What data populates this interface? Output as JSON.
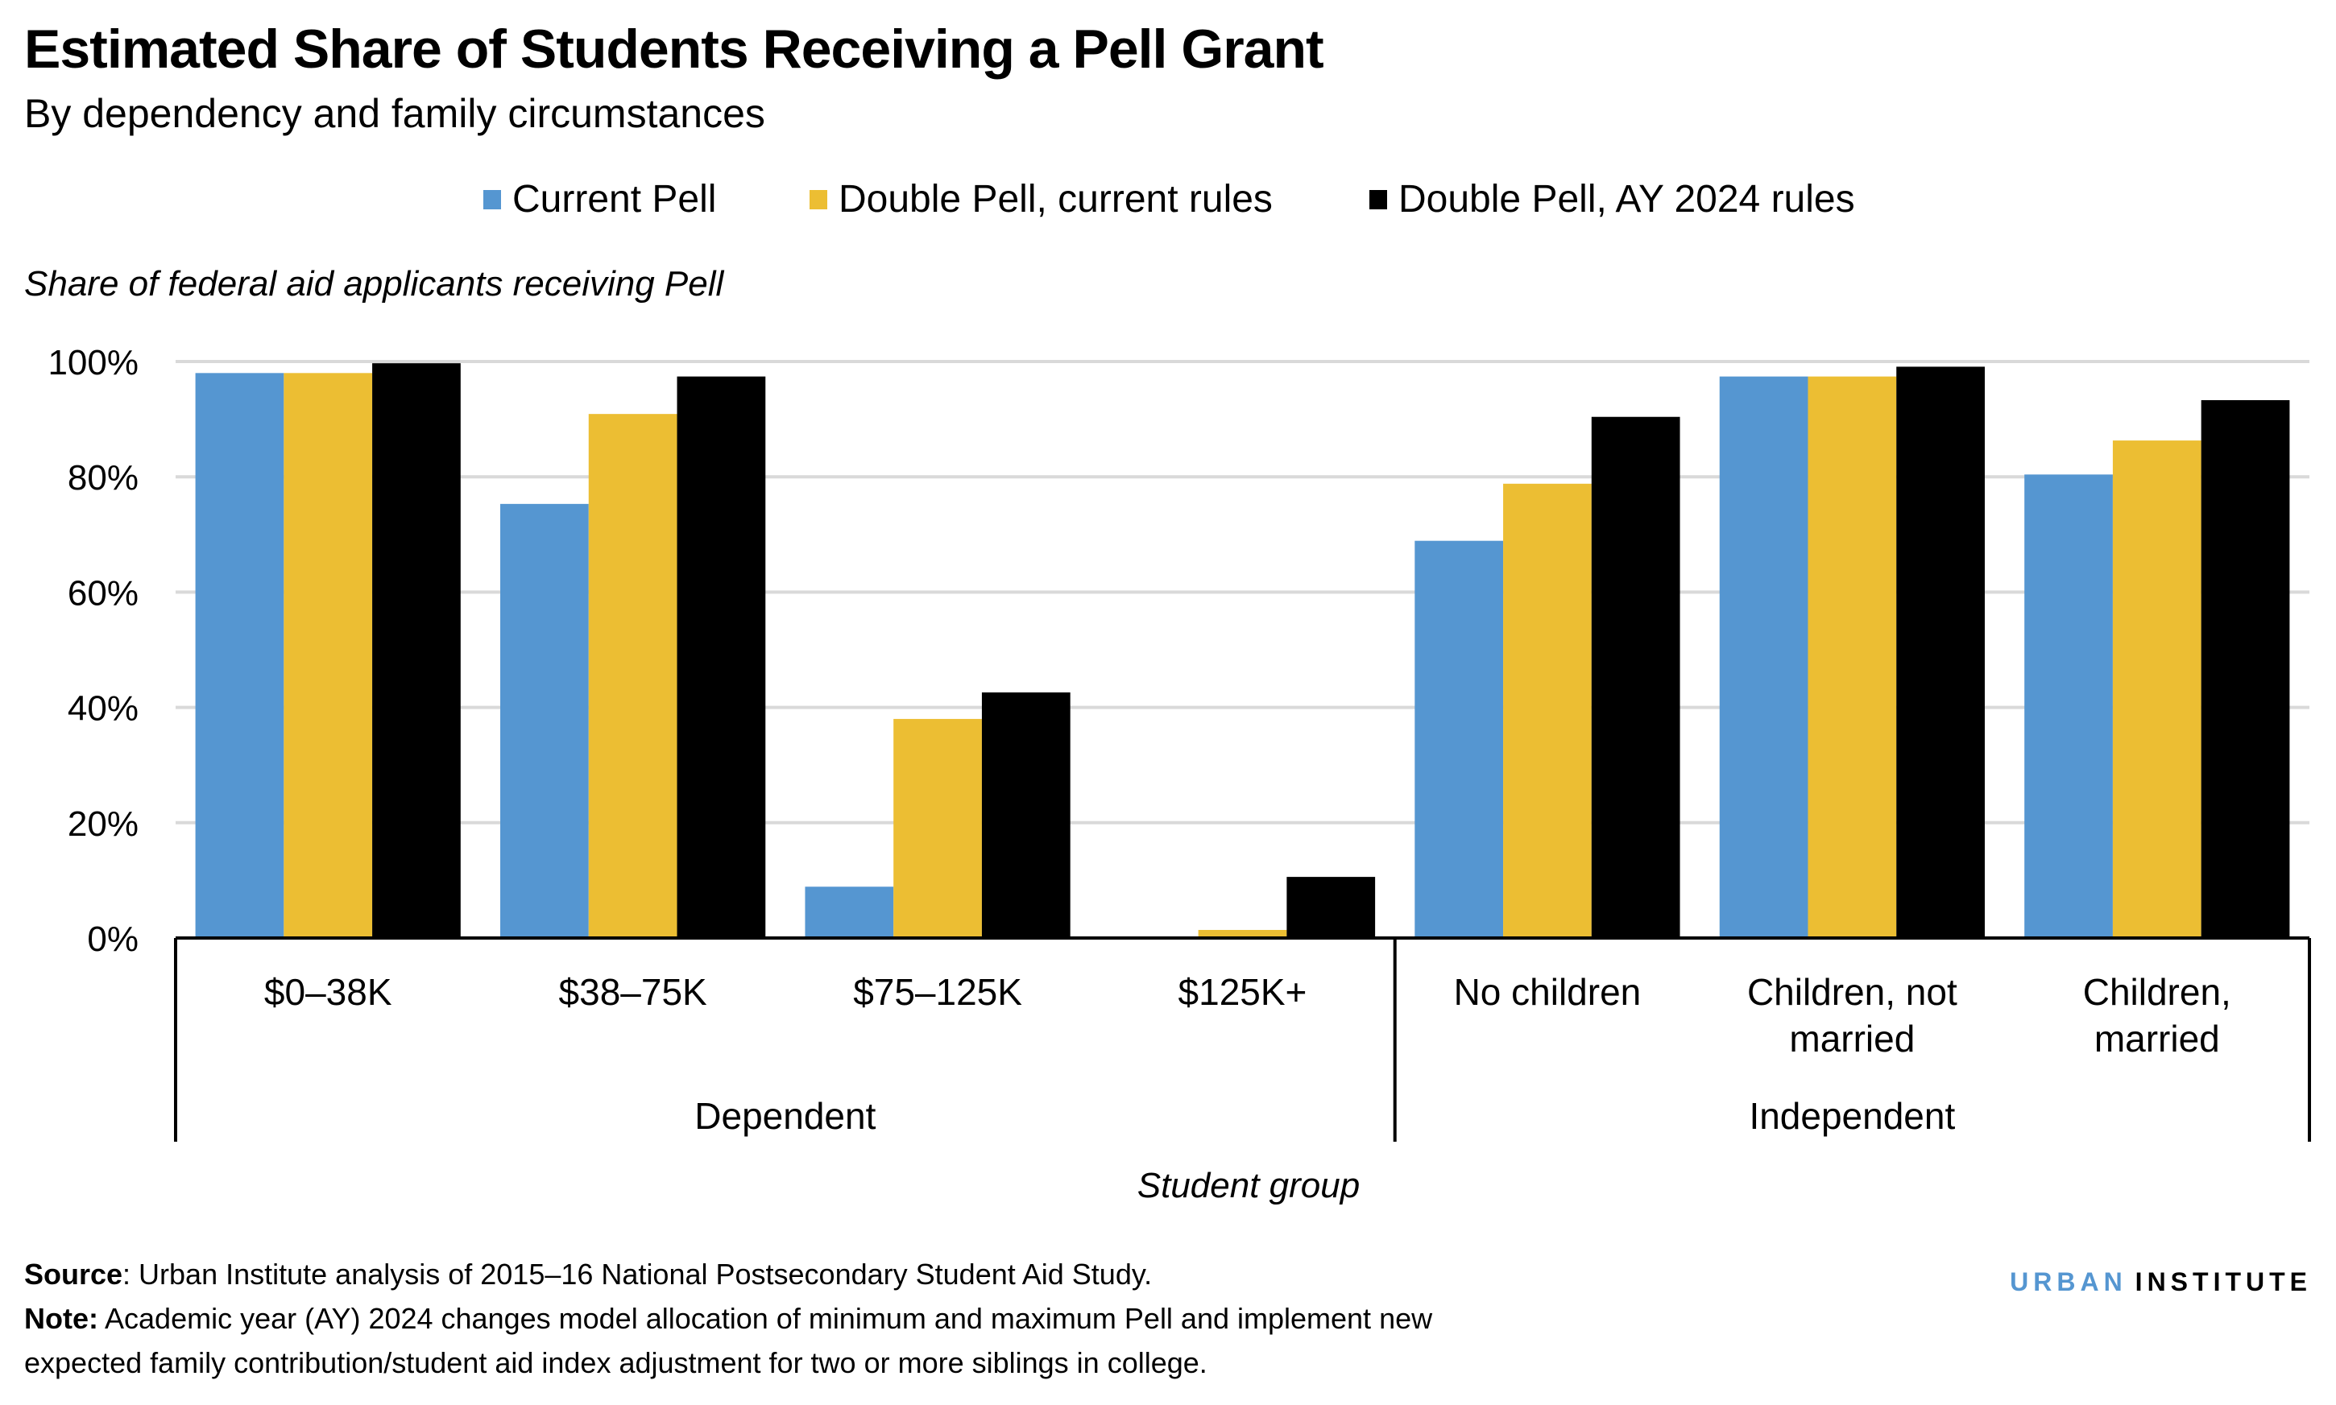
{
  "header": {
    "title": "Estimated Share of Students Receiving a Pell Grant",
    "subtitle": "By dependency and family circumstances"
  },
  "legend": [
    {
      "label": "Current Pell",
      "color": "#5596d1"
    },
    {
      "label": "Double Pell, current rules",
      "color": "#ecbe33"
    },
    {
      "label": "Double Pell, AY 2024 rules",
      "color": "#000000"
    }
  ],
  "footer": {
    "source_label": "Source",
    "source_text": ": Urban Institute analysis of 2015–16 National Postsecondary Student Aid Study.",
    "note_label": "Note:",
    "note_text_line1": " Academic year (AY) 2024 changes model allocation of minimum and maximum Pell and implement new",
    "note_text_line2": "expected family contribution/student aid index adjustment for two or more siblings in college.",
    "logo_part1": "URBAN",
    "logo_part2": "INSTITUTE"
  },
  "chart_data": {
    "type": "bar",
    "title": "Estimated Share of Students Receiving a Pell Grant",
    "subtitle": "By dependency and family circumstances",
    "xlabel": "Student group",
    "ylabel": "Share of  federal aid applicants receiving Pell",
    "ylim": [
      0,
      100
    ],
    "yticks": [
      0,
      20,
      40,
      60,
      80,
      100
    ],
    "ytick_labels": [
      "0%",
      "20%",
      "40%",
      "60%",
      "80%",
      "100%"
    ],
    "grid": true,
    "legend_position": "top-center",
    "categories": [
      [
        "$0–38K"
      ],
      [
        "$38–75K"
      ],
      [
        "$75–125K"
      ],
      [
        "$125K+"
      ],
      [
        "No children"
      ],
      [
        "Children, not",
        "married"
      ],
      [
        "Children,",
        "married"
      ]
    ],
    "groups": [
      {
        "label": "Dependent",
        "categories": [
          0,
          1,
          2,
          3
        ]
      },
      {
        "label": "Independent",
        "categories": [
          4,
          5,
          6
        ]
      }
    ],
    "series": [
      {
        "name": "Current Pell",
        "color": "#5596d1",
        "values": [
          98,
          75.3,
          8.9,
          0,
          68.9,
          97.4,
          80.4
        ]
      },
      {
        "name": "Double Pell, current rules",
        "color": "#ecbe33",
        "values": [
          98,
          90.9,
          38,
          1.4,
          78.8,
          97.4,
          86.3
        ]
      },
      {
        "name": "Double Pell, AY 2024 rules",
        "color": "#000000",
        "values": [
          99.7,
          97.4,
          42.6,
          10.6,
          90.4,
          99.1,
          93.3
        ]
      }
    ]
  }
}
